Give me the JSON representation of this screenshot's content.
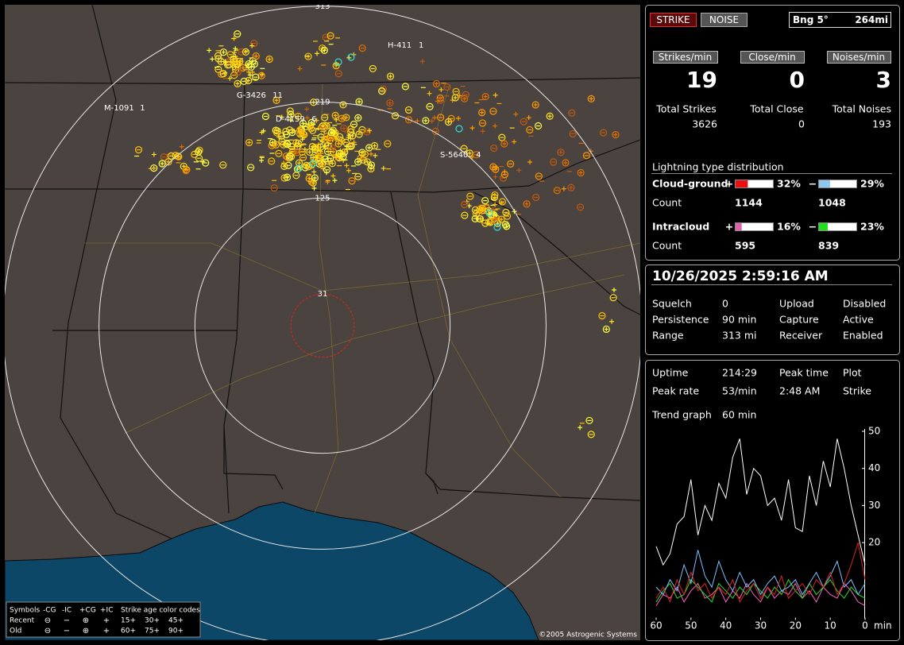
{
  "header": {
    "strike_button": "STRIKE",
    "noise_button": "NOISE",
    "bearing": "Bng 5°",
    "distance": "264mi"
  },
  "rates": {
    "labels": [
      "Strikes/min",
      "Close/min",
      "Noises/min"
    ],
    "values": [
      19,
      0,
      3
    ],
    "total_labels": [
      "Total Strikes",
      "Total Close",
      "Total Noises"
    ],
    "totals": [
      3626,
      0,
      193
    ]
  },
  "distribution": {
    "title": "Lightning type distribution",
    "count_label": "Count",
    "rows": [
      {
        "name": "Cloud-ground",
        "items": [
          {
            "sign": "+",
            "percent": {
              "value": 32,
              "label": "32%"
            },
            "count": 1144,
            "color": "#e81010"
          },
          {
            "sign": "−",
            "percent": {
              "value": 29,
              "label": "29%"
            },
            "count": 1048,
            "color": "#8ec8f2"
          }
        ]
      },
      {
        "name": "Intracloud",
        "items": [
          {
            "sign": "+",
            "percent": {
              "value": 16,
              "label": "16%"
            },
            "count": 595,
            "color": "#e060b0"
          },
          {
            "sign": "−",
            "percent": {
              "value": 23,
              "label": "23%"
            },
            "count": 839,
            "color": "#20e020"
          }
        ]
      }
    ]
  },
  "clock": "10/26/2025 2:59:16 AM",
  "settings": [
    [
      "Squelch",
      "0",
      "Upload",
      "Disabled"
    ],
    [
      "Persistence",
      "90 min",
      "Capture",
      "Active"
    ],
    [
      "Range",
      "313 mi",
      "Receiver",
      "Enabled"
    ]
  ],
  "stats": [
    [
      "Uptime",
      "214:29",
      "Peak time",
      "Plot"
    ],
    [
      "Peak rate",
      "53/min",
      "2:48 AM",
      "Strike"
    ]
  ],
  "trend": {
    "label": "Trend graph",
    "span": "60 min"
  },
  "map": {
    "range_rings": [
      313,
      219,
      125,
      31
    ],
    "storms": [
      {
        "id": "H-411",
        "count": "1"
      },
      {
        "id": "G-3426",
        "count": "11"
      },
      {
        "id": "M-1091",
        "count": "1"
      },
      {
        "id": "D-4159",
        "count": "6"
      },
      {
        "id": "S-5640",
        "count": "4"
      }
    ],
    "copyright": "©2005 Astrogenic Systems",
    "legend": {
      "header": [
        "Symbols",
        "-CG",
        "-IC",
        "+CG",
        "+IC",
        "Strike age color codes"
      ],
      "rows": [
        {
          "name": "Recent",
          "symbols": [
            "⊖",
            "−",
            "⊕",
            "+"
          ],
          "ages": [
            "15+",
            "30+",
            "45+"
          ]
        },
        {
          "name": "Old",
          "symbols": [
            "⊖",
            "−",
            "⊕",
            "+"
          ],
          "ages": [
            "60+",
            "75+",
            "90+"
          ]
        }
      ]
    }
  },
  "chart_data": {
    "type": "line",
    "x_label": "min",
    "x": [
      60,
      58,
      56,
      54,
      52,
      50,
      48,
      46,
      44,
      42,
      40,
      38,
      36,
      34,
      32,
      30,
      28,
      26,
      24,
      22,
      20,
      18,
      16,
      14,
      12,
      10,
      8,
      6,
      4,
      2,
      0
    ],
    "xlim": [
      60,
      0
    ],
    "xticks": [
      60,
      50,
      40,
      30,
      20,
      10,
      0
    ],
    "ylim": [
      0,
      50
    ],
    "yticks": [
      20,
      30,
      40,
      50
    ],
    "series": [
      {
        "color": "#ffffff",
        "values": [
          19,
          14,
          17,
          25,
          27,
          37,
          22,
          30,
          26,
          36,
          32,
          43,
          48,
          33,
          40,
          38,
          30,
          32,
          26,
          37,
          24,
          23,
          38,
          30,
          42,
          35,
          48,
          40,
          30,
          22,
          14
        ]
      },
      {
        "color": "#e02020",
        "values": [
          5,
          8,
          4,
          10,
          6,
          12,
          7,
          9,
          5,
          8,
          6,
          10,
          4,
          7,
          9,
          5,
          8,
          6,
          11,
          5,
          7,
          9,
          6,
          10,
          8,
          12,
          6,
          9,
          14,
          20,
          10
        ]
      },
      {
        "color": "#80c0ff",
        "values": [
          8,
          6,
          10,
          7,
          14,
          9,
          18,
          11,
          8,
          15,
          10,
          7,
          12,
          8,
          10,
          6,
          9,
          11,
          7,
          8,
          10,
          6,
          9,
          12,
          8,
          11,
          15,
          8,
          10,
          6,
          9
        ]
      },
      {
        "color": "#20e020",
        "values": [
          4,
          7,
          9,
          5,
          6,
          10,
          8,
          6,
          4,
          9,
          7,
          5,
          8,
          6,
          9,
          7,
          5,
          8,
          6,
          10,
          7,
          5,
          9,
          6,
          8,
          10,
          7,
          5,
          8,
          6,
          5
        ]
      },
      {
        "color": "#ff60c0",
        "values": [
          3,
          6,
          5,
          8,
          4,
          7,
          9,
          5,
          6,
          8,
          4,
          7,
          5,
          9,
          6,
          4,
          8,
          5,
          7,
          6,
          9,
          5,
          7,
          4,
          8,
          6,
          5,
          9,
          7,
          4,
          3
        ]
      }
    ]
  }
}
